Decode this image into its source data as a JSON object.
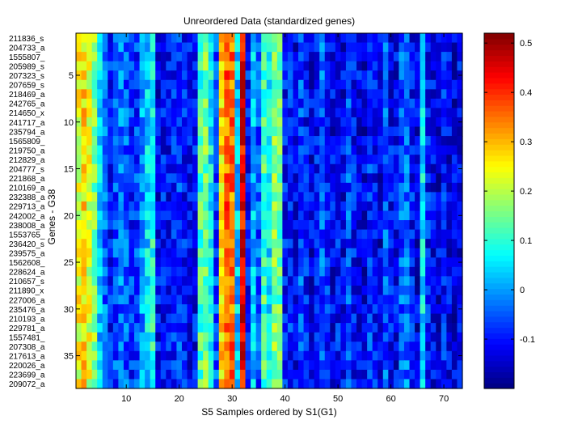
{
  "chart_data": {
    "type": "heatmap",
    "title": "Unreordered Data (standardized genes)",
    "xlabel": "S5 Samples ordered by S1(G1)",
    "ylabel": "Genes - G38",
    "x_ticks": [
      10,
      20,
      30,
      40,
      50,
      60,
      70
    ],
    "y_ticks": [
      5,
      10,
      15,
      20,
      25,
      30,
      35
    ],
    "n_columns": 73,
    "gene_labels": [
      "211836_s",
      "204733_a",
      "1555807_",
      "205989_s",
      "207323_s",
      "207659_s",
      "218469_a",
      "242765_a",
      "214650_x",
      "241717_a",
      "235794_a",
      "1565809_",
      "219750_a",
      "212829_a",
      "204777_s",
      "221868_a",
      "210169_a",
      "232388_a",
      "229713_a",
      "242002_a",
      "238008_a",
      "1553765_",
      "236420_s",
      "239575_a",
      "1562608_",
      "228624_a",
      "210657_s",
      "211890_x",
      "227006_a",
      "235476_a",
      "210193_a",
      "229781_a",
      "1557481_",
      "207308_a",
      "217613_a",
      "220026_a",
      "223699_a",
      "209072_a"
    ],
    "colorbar": {
      "ticks": [
        -0.1,
        0,
        0.1,
        0.2,
        0.3,
        0.4,
        0.5
      ],
      "tick_labels": [
        "-0.1",
        "0",
        "0.1",
        "0.2",
        "0.3",
        "0.4",
        "0.5"
      ],
      "min": -0.2,
      "max": 0.52,
      "colormap": "jet"
    },
    "column_profile": [
      0.24,
      0.27,
      0.22,
      0.16,
      0.04,
      -0.04,
      -0.1,
      -0.06,
      -0.03,
      -0.05,
      -0.08,
      -0.07,
      0.0,
      0.05,
      0.09,
      -0.12,
      -0.1,
      -0.11,
      -0.09,
      -0.07,
      -0.1,
      -0.12,
      -0.11,
      0.12,
      0.15,
      0.06,
      -0.06,
      0.28,
      0.36,
      0.35,
      0.03,
      0.44,
      -0.1,
      0.02,
      -0.05,
      0.12,
      0.06,
      0.16,
      0.14,
      -0.1,
      -0.09,
      -0.12,
      -0.06,
      -0.1,
      -0.13,
      -0.1,
      -0.05,
      -0.08,
      -0.12,
      -0.1,
      -0.12,
      -0.06,
      -0.1,
      -0.12,
      -0.13,
      -0.08,
      -0.1,
      -0.13,
      -0.05,
      -0.11,
      -0.12,
      -0.05,
      -0.03,
      -0.1,
      -0.13,
      0.06,
      -0.1,
      -0.12,
      -0.13,
      -0.1,
      -0.12,
      -0.13,
      -0.12
    ],
    "noise": 0.07,
    "value_range": [
      -0.2,
      0.52
    ]
  }
}
